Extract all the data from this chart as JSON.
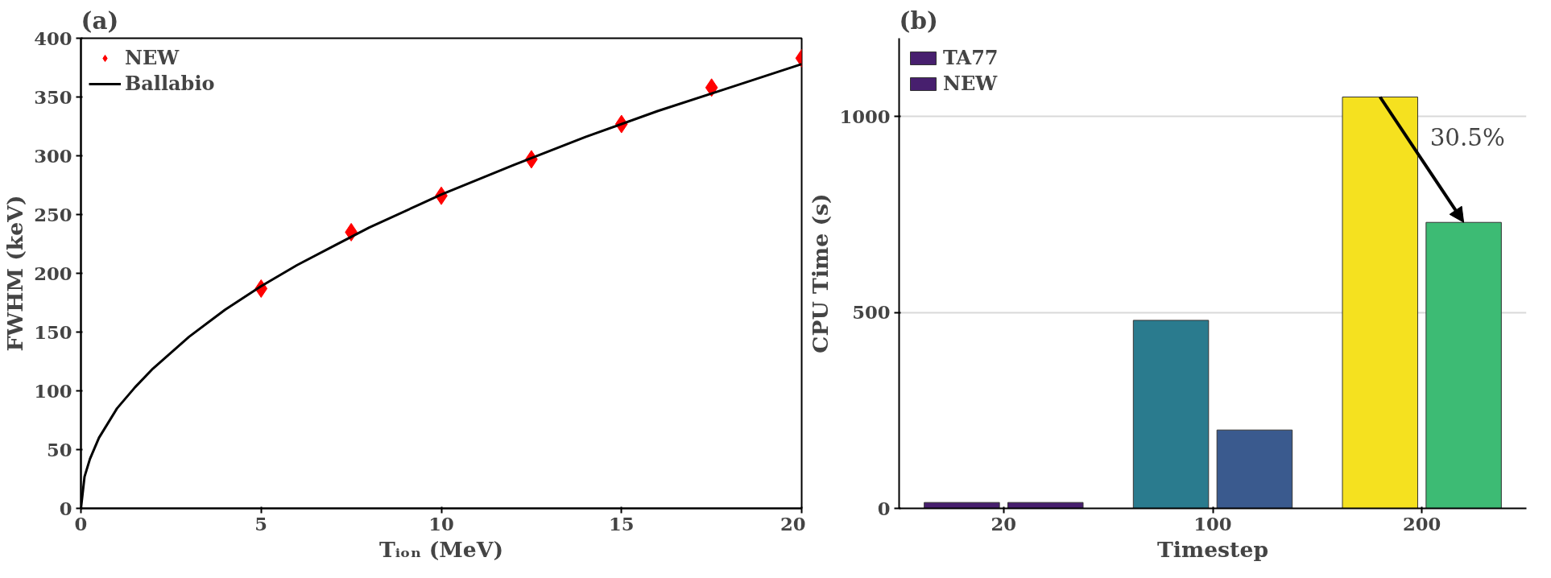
{
  "chart_data": [
    {
      "type": "scatter",
      "title": "(a)",
      "xlabel": "Tᵢₒₙ (MeV)",
      "ylabel": "FWHM (keV)",
      "xlim": [
        0,
        20
      ],
      "ylim": [
        0,
        400
      ],
      "xticks": [
        0,
        5,
        10,
        15,
        20
      ],
      "yticks": [
        0,
        50,
        100,
        150,
        200,
        250,
        300,
        350,
        400
      ],
      "grid": false,
      "legend": "top left",
      "series": [
        {
          "name": "NEW",
          "type": "scatter",
          "marker": "diamond",
          "color": "#ff0000",
          "x": [
            5,
            7.5,
            10,
            12.5,
            15,
            17.5,
            20
          ],
          "values": [
            187,
            235,
            266,
            297,
            327,
            358,
            383
          ]
        },
        {
          "name": "Ballabio",
          "type": "line",
          "marker": "none",
          "line_style": "solid",
          "color": "#000000",
          "x": [
            0,
            0.1,
            0.25,
            0.5,
            1,
            1.5,
            2,
            3,
            4,
            5,
            6,
            7,
            8,
            10,
            12,
            14,
            16,
            18,
            20
          ],
          "values": [
            0,
            27,
            42,
            60,
            85,
            103,
            119,
            146,
            169,
            189,
            207,
            223,
            239,
            267,
            292,
            316,
            338,
            358,
            378
          ]
        }
      ]
    },
    {
      "type": "bar",
      "title": "(b)",
      "xlabel": "Timestep",
      "ylabel": "CPU Time (s)",
      "categories": [
        "20",
        "100",
        "200"
      ],
      "ylim": [
        0,
        1200
      ],
      "yticks": [
        0,
        500,
        1000
      ],
      "grid": "y",
      "legend": "top left",
      "annotations": [
        "30.5%"
      ],
      "series": [
        {
          "name": "TA77",
          "colors": [
            "#471f6e",
            "#2a7b8e",
            "#f5e11f"
          ],
          "values": [
            15,
            480,
            1050
          ]
        },
        {
          "name": "NEW",
          "colors": [
            "#471f6e",
            "#3a5a8e",
            "#3dbb74"
          ],
          "values": [
            15,
            200,
            730
          ]
        }
      ]
    }
  ]
}
